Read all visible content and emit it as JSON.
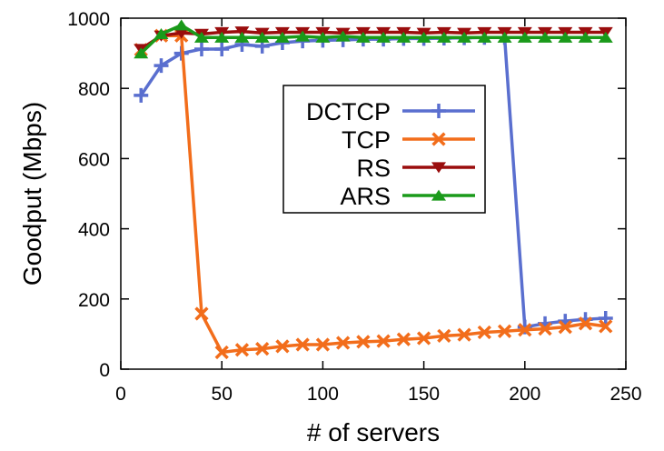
{
  "chart_data": {
    "type": "line",
    "title": "",
    "xlabel": "# of servers",
    "ylabel": "Goodput (Mbps)",
    "xlim": [
      0,
      250
    ],
    "ylim": [
      0,
      1000
    ],
    "xticks": [
      0,
      50,
      100,
      150,
      200,
      250
    ],
    "yticks": [
      0,
      200,
      400,
      600,
      800,
      1000
    ],
    "grid": false,
    "legend_position": "center",
    "series": [
      {
        "name": "DCTCP",
        "color": "#5a6fcf",
        "marker": "plus",
        "x": [
          10,
          20,
          30,
          40,
          50,
          60,
          70,
          80,
          90,
          100,
          110,
          120,
          130,
          140,
          150,
          160,
          170,
          180,
          190,
          200,
          210,
          220,
          230,
          240
        ],
        "y": [
          780,
          865,
          900,
          912,
          912,
          925,
          920,
          930,
          935,
          937,
          938,
          940,
          940,
          942,
          942,
          943,
          944,
          945,
          945,
          120,
          130,
          137,
          142,
          145
        ]
      },
      {
        "name": "TCP",
        "color": "#f26d1b",
        "marker": "x",
        "x": [
          10,
          20,
          30,
          40,
          50,
          60,
          70,
          80,
          90,
          100,
          110,
          120,
          130,
          140,
          150,
          160,
          170,
          180,
          190,
          200,
          210,
          220,
          230,
          240
        ],
        "y": [
          910,
          950,
          950,
          158,
          48,
          55,
          58,
          65,
          70,
          70,
          75,
          78,
          80,
          85,
          88,
          95,
          98,
          105,
          108,
          112,
          115,
          120,
          130,
          122
        ]
      },
      {
        "name": "RS",
        "color": "#9a0d0d",
        "marker": "triangle-down",
        "x": [
          10,
          20,
          30,
          40,
          50,
          60,
          70,
          80,
          90,
          100,
          110,
          120,
          130,
          140,
          150,
          160,
          170,
          180,
          190,
          200,
          210,
          220,
          230,
          240
        ],
        "y": [
          912,
          950,
          958,
          955,
          960,
          962,
          958,
          960,
          960,
          960,
          958,
          960,
          960,
          960,
          958,
          960,
          958,
          960,
          960,
          960,
          960,
          960,
          960,
          960
        ]
      },
      {
        "name": "ARS",
        "color": "#1a9a1a",
        "marker": "triangle-up",
        "x": [
          10,
          20,
          30,
          40,
          50,
          60,
          70,
          80,
          90,
          100,
          110,
          120,
          130,
          140,
          150,
          160,
          170,
          180,
          190,
          200,
          210,
          220,
          230,
          240
        ],
        "y": [
          900,
          955,
          980,
          945,
          945,
          945,
          945,
          945,
          948,
          945,
          948,
          945,
          945,
          945,
          945,
          945,
          945,
          945,
          945,
          945,
          945,
          945,
          945,
          945
        ]
      }
    ]
  }
}
